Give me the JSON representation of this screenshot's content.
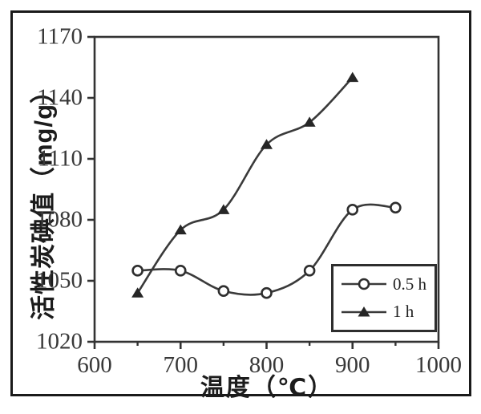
{
  "figure": {
    "x_axis_title": "温度（℃）",
    "y_axis_title": "活性炭碘值（mg/g）"
  },
  "legend": {
    "items": [
      {
        "label": "0.5 h",
        "marker": "open-circle"
      },
      {
        "label": "1 h",
        "marker": "filled-triangle"
      }
    ]
  },
  "chart_data": {
    "type": "line",
    "title": "",
    "xlabel": "温度（℃）",
    "ylabel": "活性炭碘值（mg/g）",
    "xlim": [
      600,
      1000
    ],
    "ylim": [
      1020,
      1170
    ],
    "x_major_ticks": [
      600,
      700,
      800,
      900,
      1000
    ],
    "x_minor_ticks": [
      650,
      750,
      850,
      950
    ],
    "y_ticks": [
      1020,
      1050,
      1080,
      1110,
      1140,
      1170
    ],
    "grid": false,
    "legend_position": "inside lower-right",
    "line_color": "#3a3a3a",
    "marker_stroke_color": "#2e2e2e",
    "marker_fill_triangle": "#262626",
    "series": [
      {
        "name": "0.5 h",
        "marker": "open-circle",
        "x": [
          650,
          700,
          750,
          800,
          850,
          900,
          950
        ],
        "y": [
          1055,
          1055,
          1045,
          1044,
          1055,
          1085,
          1086
        ]
      },
      {
        "name": "1 h",
        "marker": "filled-triangle",
        "x": [
          650,
          700,
          750,
          800,
          850,
          900
        ],
        "y": [
          1044,
          1075,
          1085,
          1117,
          1128,
          1150
        ]
      }
    ]
  }
}
